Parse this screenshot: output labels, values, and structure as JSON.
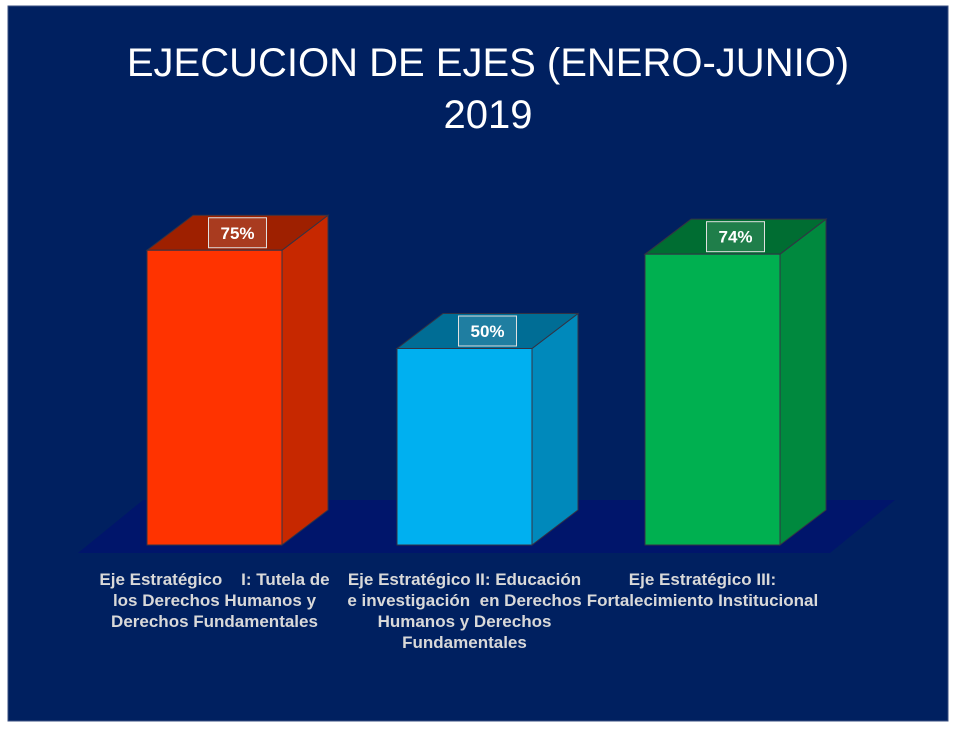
{
  "chart_data": {
    "type": "bar3d",
    "title": [
      "EJECUCION DE EJES (ENERO-JUNIO)",
      "2019"
    ],
    "categories": [
      "Eje Estratégico    I: Tutela de los Derechos Humanos y Derechos Fundamentales",
      "Eje Estratégico II: Educación e investigación  en Derechos Humanos y Derechos Fundamentales",
      "Eje Estratégico III: Fortalecimiento Institucional"
    ],
    "values": [
      75,
      50,
      74
    ],
    "value_labels": [
      "75%",
      "50%",
      "74%"
    ],
    "colors": [
      "#ff3300",
      "#00b0f0",
      "#00b050"
    ]
  }
}
